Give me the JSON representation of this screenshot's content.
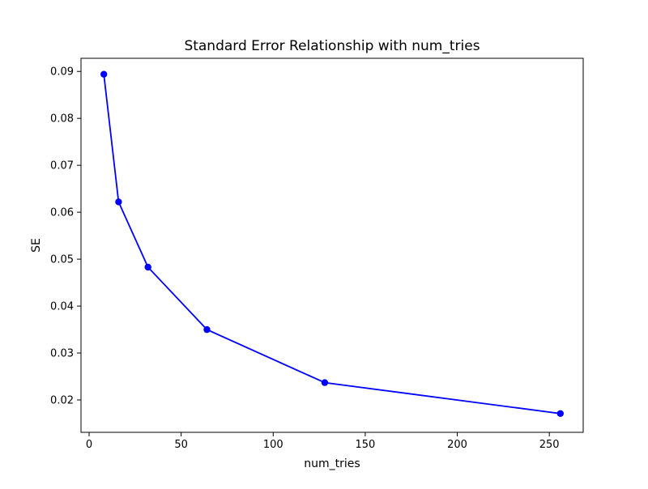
{
  "figure": {
    "background": "#ffffff",
    "axes_edge_color": "#000000"
  },
  "chart_data": {
    "type": "line",
    "title": "Standard Error Relationship with num_tries",
    "xlabel": "num_tries",
    "ylabel": "SE",
    "x": [
      8,
      16,
      32,
      64,
      128,
      256
    ],
    "y": [
      0.0894,
      0.0622,
      0.0483,
      0.035,
      0.0237,
      0.0171
    ],
    "line_color": "#0000ff",
    "marker": "circle",
    "marker_color": "#0000ff",
    "xlim": [
      -4.4,
      268.4
    ],
    "ylim": [
      0.0131,
      0.0928
    ],
    "xticks": [
      0,
      50,
      100,
      150,
      200,
      250
    ],
    "yticks": [
      0.02,
      0.03,
      0.04,
      0.05,
      0.06,
      0.07,
      0.08,
      0.09
    ],
    "ytick_decimals": 2,
    "grid": false,
    "legend_position": "none"
  }
}
